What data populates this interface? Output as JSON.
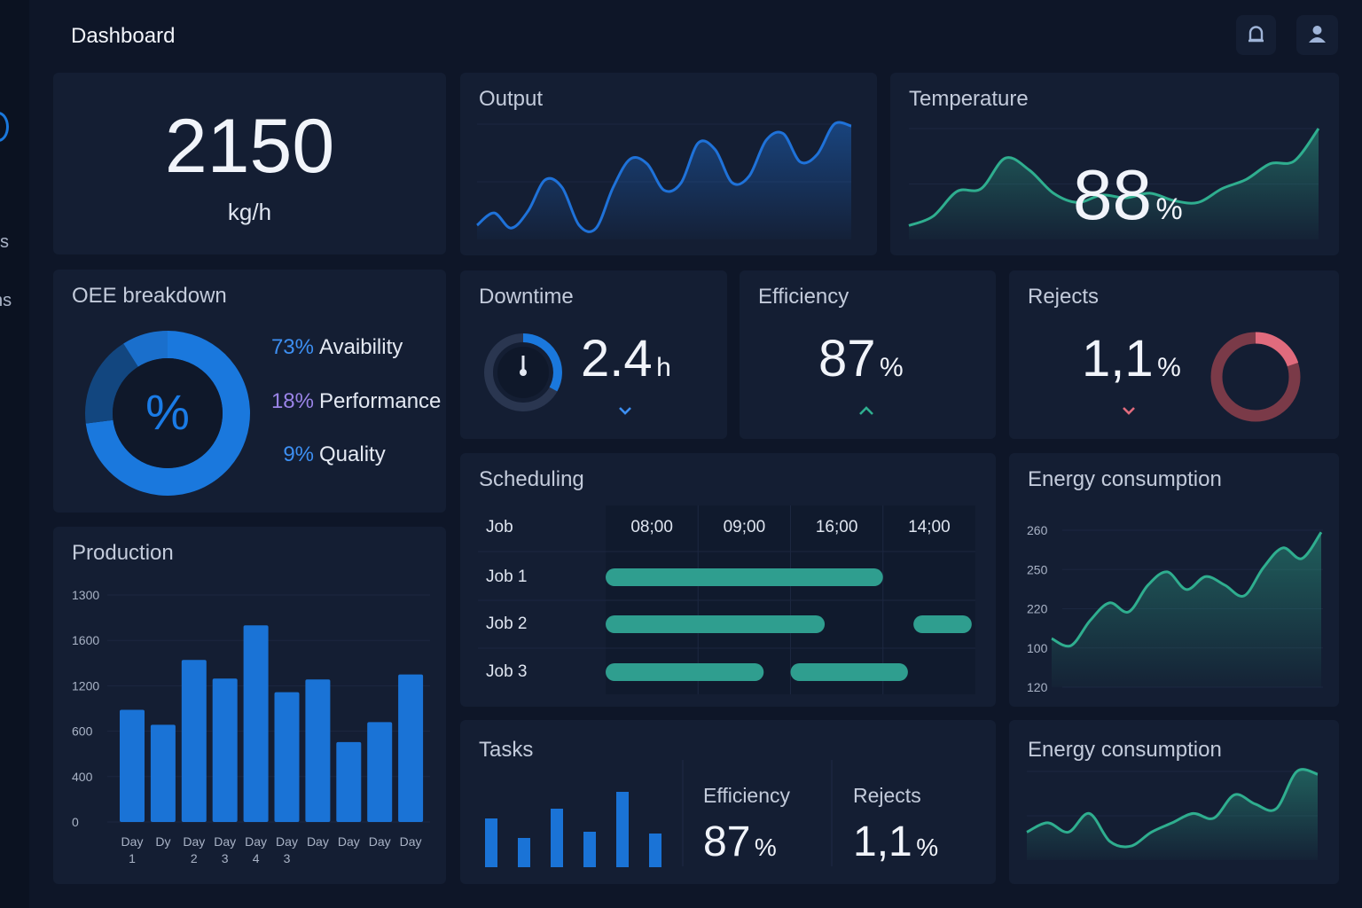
{
  "header": {
    "title": "Dashboard"
  },
  "sidebar": {
    "labels": [
      "s",
      "ns"
    ]
  },
  "throughput": {
    "value": 2150,
    "unit": "kg/h"
  },
  "output": {
    "title": "Output",
    "chart": {
      "type": "area",
      "color": "#1f72d9",
      "values": [
        15,
        28,
        12,
        30,
        63,
        55,
        15,
        12,
        55,
        85,
        80,
        52,
        60,
        102,
        95,
        60,
        67,
        105,
        112,
        82,
        90,
        122,
        120
      ]
    }
  },
  "temperature": {
    "title": "Temperature",
    "value": 88,
    "unit": "%",
    "chart": {
      "type": "area",
      "color": "#2fae8f",
      "values": [
        15,
        25,
        52,
        55,
        88,
        75,
        50,
        40,
        48,
        45,
        50,
        42,
        40,
        55,
        65,
        82,
        85,
        120
      ]
    }
  },
  "oee": {
    "title": "OEE breakdown",
    "center": "%",
    "chart": {
      "type": "donut",
      "categories": [
        "Avaibility",
        "Performance",
        "Quality"
      ],
      "values": [
        73,
        18,
        9
      ],
      "value_labels": [
        "73%",
        "18%",
        "9%"
      ],
      "colors": [
        "#1a78dd",
        "#12467f",
        "#1a6fcc"
      ],
      "label_colors": [
        "#3d8ff2",
        "#9b84e8",
        "#3d8ff2"
      ]
    }
  },
  "production": {
    "title": "Production",
    "chart": {
      "type": "bar",
      "color": "#1a73d6",
      "categories": [
        "Day 1",
        "Dy",
        "Day 2",
        "Day 3",
        "Day 4",
        "Day 3",
        "Day",
        "Day",
        "Day",
        "Day"
      ],
      "values": [
        2.47,
        2.14,
        3.57,
        3.16,
        4.33,
        2.86,
        3.14,
        1.76,
        2.2,
        3.25
      ],
      "ylim": [
        0,
        5
      ],
      "yticks": [
        {
          "value": 0,
          "label": "0"
        },
        {
          "value": 1,
          "label": "400"
        },
        {
          "value": 2,
          "label": "600"
        },
        {
          "value": 3,
          "label": "1200"
        },
        {
          "value": 4,
          "label": "1600"
        },
        {
          "value": 5,
          "label": "1300"
        }
      ],
      "grid": true
    }
  },
  "downtime": {
    "title": "Downtime",
    "value": 2.4,
    "unit": "h"
  },
  "efficiency": {
    "title": "Efficiency",
    "value": 87,
    "unit": "%"
  },
  "rejects": {
    "title": "Rejects",
    "value": "1,1",
    "unit": "%"
  },
  "scheduling": {
    "title": "Scheduling",
    "header": [
      "Job",
      "08;00",
      "09;00",
      "16;00",
      "14;00"
    ],
    "color": "#2f9e8f",
    "rows": [
      {
        "name": "Job 1",
        "bars": [
          [
            0,
            3
          ]
        ]
      },
      {
        "name": "Job 2",
        "bars": [
          [
            0,
            2.37
          ],
          [
            3.33,
            3.96
          ]
        ]
      },
      {
        "name": "Job 3",
        "bars": [
          [
            0,
            1.71
          ],
          [
            2,
            3.27
          ]
        ]
      }
    ]
  },
  "energy": {
    "title": "Energy consumption",
    "chart": {
      "type": "area",
      "color": "#2fae8f",
      "values": [
        1.24,
        1.06,
        1.7,
        2.15,
        1.92,
        2.6,
        2.94,
        2.49,
        2.82,
        2.6,
        2.33,
        3.05,
        3.55,
        3.28,
        3.95
      ],
      "ylim": [
        0,
        4
      ],
      "yticks": [
        {
          "value": 0,
          "label": "120"
        },
        {
          "value": 1,
          "label": "100"
        },
        {
          "value": 2,
          "label": "220"
        },
        {
          "value": 3,
          "label": "250"
        },
        {
          "value": 4,
          "label": "260"
        }
      ],
      "grid": true
    }
  },
  "tasks": {
    "title": "Tasks",
    "chart": {
      "type": "bar",
      "color": "#1a73d6",
      "values": [
        55,
        33,
        66,
        40,
        85,
        38
      ]
    },
    "stats": [
      {
        "label": "Efficiency",
        "value": 87,
        "unit": "%"
      },
      {
        "label": "Rejects",
        "value": "1,1",
        "unit": "%"
      }
    ]
  },
  "energy2": {
    "title": "Energy consumption",
    "chart": {
      "type": "area",
      "color": "#2fae8f",
      "values": [
        30,
        40,
        30,
        50,
        20,
        15,
        30,
        40,
        50,
        45,
        70,
        60,
        55,
        95,
        92
      ]
    }
  }
}
